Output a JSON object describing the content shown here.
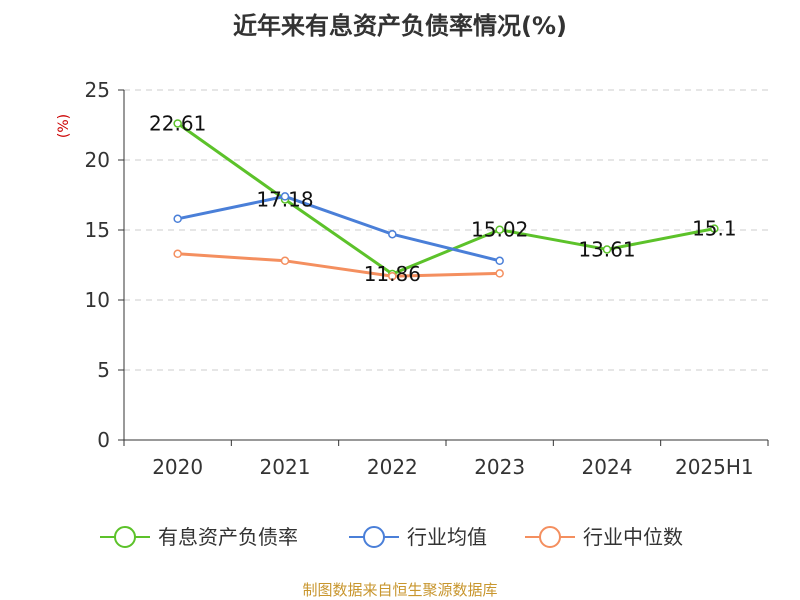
{
  "chart_data": {
    "type": "line",
    "title": "近年来有息资产负债率情况(%)",
    "ylabel": "(%)",
    "xlabel": "",
    "categories": [
      "2020",
      "2021",
      "2022",
      "2023",
      "2024",
      "2025H1"
    ],
    "ylim": [
      0,
      25
    ],
    "yticks": [
      "0",
      "5",
      "10",
      "15",
      "20",
      "25"
    ],
    "grid": true,
    "legend_position": "bottom",
    "series": [
      {
        "name": "有息资产负债率",
        "color": "#5cc22a",
        "values": [
          22.61,
          17.18,
          11.86,
          15.02,
          13.61,
          15.1
        ],
        "labels": [
          "22.61",
          "17.18",
          "11.86",
          "15.02",
          "13.61",
          "15.1"
        ]
      },
      {
        "name": "行业均值",
        "color": "#4a7fd8",
        "values": [
          15.8,
          17.4,
          14.7,
          12.8,
          null,
          null
        ]
      },
      {
        "name": "行业中位数",
        "color": "#f48f5f",
        "values": [
          13.3,
          12.8,
          11.7,
          11.9,
          null,
          null
        ]
      }
    ]
  },
  "source": "制图数据来自恒生聚源数据库",
  "colors": {
    "ylabel": "#cc0000",
    "source": "#c8962e",
    "axis": "#333333",
    "grid": "#cccccc"
  }
}
